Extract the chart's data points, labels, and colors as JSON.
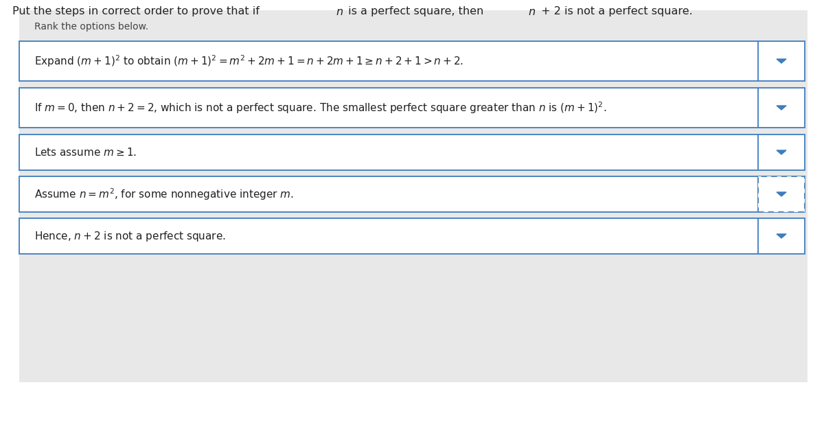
{
  "title_parts": [
    {
      "text": "Put the steps in correct order to prove that if ",
      "style": "normal"
    },
    {
      "text": "n",
      "style": "italic"
    },
    {
      "text": " is a perfect square, then ",
      "style": "normal"
    },
    {
      "text": "n",
      "style": "italic"
    },
    {
      "text": " + 2 is not a perfect square.",
      "style": "normal"
    }
  ],
  "subtitle": "Rank the options below.",
  "bg_color": "#e8e8e8",
  "white": "#ffffff",
  "box_border_color": "#3d7dbf",
  "title_color": "#222222",
  "text_color": "#222222",
  "arrow_color": "#3d7dbf",
  "rows": [
    {
      "mathtext": "Expand $(m + 1)^2$ to obtain $(m + 1)^2 = m^2 + 2m + 1 = n + 2m + 1 \\geq n + 2 + 1 > n + 2.$",
      "dashed": false
    },
    {
      "mathtext": "If $m = 0$, then $n + 2 = 2$, which is not a perfect square. The smallest perfect square greater than $n$ is $(m + 1)^2$.",
      "dashed": false
    },
    {
      "mathtext": "Lets assume $m \\geq 1$.",
      "dashed": false
    },
    {
      "mathtext": "Assume $n = m^2$, for some nonnegative integer $m$.",
      "dashed": true
    },
    {
      "mathtext": "Hence, $n + 2$ is not a perfect square.",
      "dashed": false
    }
  ]
}
